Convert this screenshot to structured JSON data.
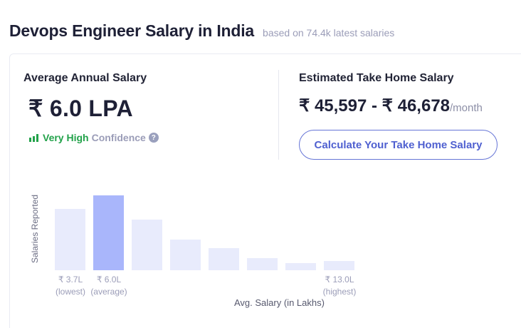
{
  "header": {
    "title": "Devops Engineer Salary in India",
    "subtitle": "based on 74.4k latest salaries"
  },
  "average": {
    "label": "Average Annual Salary",
    "value": "₹ 6.0 LPA",
    "confidence_level": "Very High",
    "confidence_word": "Confidence",
    "help_icon": "?"
  },
  "take_home": {
    "label": "Estimated Take Home Salary",
    "range": "₹ 45,597 - ₹ 46,678",
    "unit": "/month",
    "button_label": "Calculate Your Take Home Salary"
  },
  "colors": {
    "bar": "#e8ebfc",
    "bar_highlight": "#a9b6fb",
    "confidence": "#22a24a",
    "button": "#4f60d0"
  },
  "chart_data": {
    "type": "bar",
    "title": "",
    "xlabel": "Avg. Salary (in Lakhs)",
    "ylabel": "Salaries Reported",
    "categories": [
      "₹ 3.7L",
      "₹ 6.0L",
      "",
      "",
      "",
      "",
      "",
      "₹ 13.0L"
    ],
    "category_notes": [
      "(lowest)",
      "(average)",
      "",
      "",
      "",
      "",
      "",
      "(highest)"
    ],
    "values": [
      86,
      105,
      71,
      43,
      31,
      17,
      10,
      13
    ],
    "highlight_index": 1,
    "grid": false,
    "legend": "none",
    "ticks": [
      {
        "label": "₹ 3.7L",
        "note": "(lowest)"
      },
      {
        "label": "₹ 6.0L",
        "note": "(average)"
      },
      {
        "label": "₹ 13.0L",
        "note": "(highest)"
      }
    ]
  }
}
